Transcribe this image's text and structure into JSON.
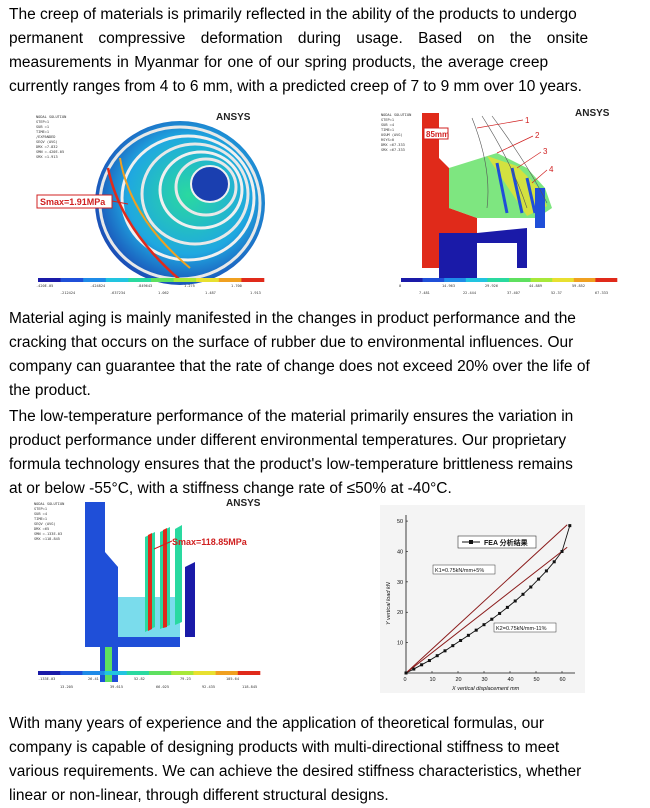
{
  "paragraphs": {
    "creep": [
      "The creep of materials is primarily reflected in the ability of the products to undergo",
      "permanent compressive deformation during usage. Based on the onsite",
      "measurements in Myanmar for one of our spring products, the average creep",
      "currently ranges from 4 to 6 mm, with a predicted creep of 7 to 9 mm over 10 years."
    ],
    "aging": [
      "Material aging is mainly manifested in the changes in product performance and the",
      "cracking that occurs on the surface of rubber due to environmental influences. Our",
      "company can guarantee that the rate of change does not exceed 20% over the life of",
      "the product."
    ],
    "low_temp": [
      "The low-temperature performance of the material primarily ensures the variation in",
      "product performance under different environmental temperatures. Our proprietary",
      "formula technology ensures that the product's low-temperature brittleness remains",
      "at or below -55°C, with a stiffness change rate of ≤50% at -40°C."
    ],
    "stiffness": [
      "With many years of experience and the application of theoretical formulas, our",
      "company is capable of designing products with multi-directional stiffness to meet",
      "various requirements. We can achieve the desired stiffness characteristics, whether",
      "linear or non-linear, through different structural designs."
    ]
  },
  "figures": {
    "fea_1": {
      "logo": "ANSYS",
      "header": [
        "NODAL SOLUTION",
        "STEP=1",
        "SUB =1",
        "TIME=1",
        "/EXPANDED",
        "SEQV (AVG)",
        "DMX =7.832",
        "SMN =.420E-05",
        "SMX =1.913"
      ],
      "callout": "Smax=1.91MPa",
      "legend_top": [
        ".420E-05",
        ".424824",
        ".849643",
        "1.275",
        "1.700"
      ],
      "legend_bottom": [
        ".212424",
        ".637234",
        "1.062",
        "1.487",
        "1.913"
      ],
      "legend_colors": [
        "#1a1aa8",
        "#1f4fd8",
        "#1f8be8",
        "#22c4e0",
        "#2ad9a0",
        "#5ee060",
        "#a8e83a",
        "#e8e030",
        "#f0a020",
        "#e02a1a"
      ]
    },
    "fea_2": {
      "logo": "ANSYS",
      "header": [
        "NODAL SOLUTION",
        "STEP=1",
        "SUB =4",
        "TIME=1",
        "USUM (AVG)",
        "RSYS=0",
        "DMX =67.333",
        "SMX =67.333"
      ],
      "dim_label": "85mm",
      "markers": [
        "1",
        "2",
        "3",
        "4"
      ],
      "legend_top": [
        "0",
        "14.963",
        "29.926",
        "44.889",
        "59.852"
      ],
      "legend_bottom": [
        "7.481",
        "22.444",
        "37.407",
        "52.37",
        "67.333"
      ]
    },
    "fea_3": {
      "logo": "ANSYS",
      "header": [
        "NODAL SOLUTION",
        "STEP=1",
        "SUB =4",
        "TIME=1",
        "SEQV (AVG)",
        "DMX =65",
        "SMN =.133E-03",
        "SMX =118.845"
      ],
      "callout": "Smax=118.85MPa",
      "legend_top": [
        ".133E-03",
        "26.41",
        "52.82",
        "79.23",
        "105.64"
      ],
      "legend_bottom": [
        "13.205",
        "39.615",
        "66.025",
        "92.435",
        "118.845"
      ]
    },
    "stiffness_chart": {
      "legend_label": "FEA 分析结果",
      "k1_label": "K1=0.75kN/mm+5%",
      "k2_label": "K2=0.75kN/mm-11%",
      "xlabel": "X vertical displacement mm",
      "ylabel": "Y vertical load kN"
    }
  },
  "chart_data": {
    "type": "line",
    "xlabel": "X vertical displacement mm",
    "ylabel": "Y vertical load kN",
    "xlim": [
      0,
      65
    ],
    "ylim": [
      0,
      52
    ],
    "xticks": [
      0,
      10,
      20,
      30,
      40,
      50,
      60
    ],
    "yticks": [
      10,
      20,
      30,
      40,
      50
    ],
    "series": [
      {
        "name": "FEA 分析结果",
        "x": [
          0,
          3,
          6,
          9,
          12,
          15,
          18,
          21,
          24,
          27,
          30,
          33,
          36,
          39,
          42,
          45,
          48,
          51,
          54,
          57,
          60,
          63
        ],
        "y": [
          0,
          1.3,
          2.7,
          4.1,
          5.7,
          7.3,
          9.0,
          10.7,
          12.4,
          14.1,
          15.9,
          17.7,
          19.6,
          21.6,
          23.7,
          25.9,
          28.3,
          30.9,
          33.6,
          36.6,
          40.0,
          48.5
        ]
      },
      {
        "name": "K1=0.75kN/mm+5%",
        "x": [
          0,
          62
        ],
        "y": [
          0,
          48.8
        ]
      },
      {
        "name": "K2=0.75kN/mm-11%",
        "x": [
          0,
          62
        ],
        "y": [
          0,
          41.4
        ]
      }
    ]
  }
}
